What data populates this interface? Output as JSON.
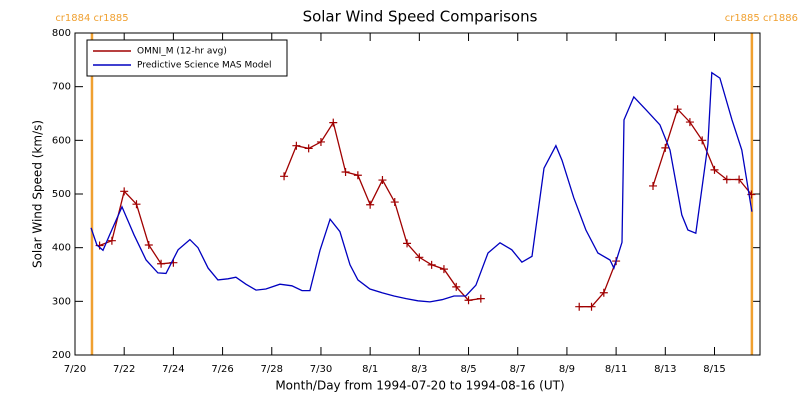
{
  "chart_data": {
    "type": "line",
    "title": "Solar Wind Speed Comparisons",
    "x_label": "Month/Day from 1994-07-20 to 1994-08-16 (UT)",
    "y_label": "Solar Wind Speed (km/s)",
    "xlim": [
      0,
      27.85
    ],
    "ylim": [
      200,
      800
    ],
    "xticks": [
      {
        "value": 0,
        "label": "7/20"
      },
      {
        "value": 2,
        "label": "7/22"
      },
      {
        "value": 4,
        "label": "7/24"
      },
      {
        "value": 6,
        "label": "7/26"
      },
      {
        "value": 8,
        "label": "7/28"
      },
      {
        "value": 10,
        "label": "7/30"
      },
      {
        "value": 12,
        "label": "8/1"
      },
      {
        "value": 14,
        "label": "8/3"
      },
      {
        "value": 16,
        "label": "8/5"
      },
      {
        "value": 18,
        "label": "8/7"
      },
      {
        "value": 20,
        "label": "8/9"
      },
      {
        "value": 22,
        "label": "8/11"
      },
      {
        "value": 24,
        "label": "8/13"
      },
      {
        "value": 26,
        "label": "8/15"
      }
    ],
    "yticks": [
      200,
      300,
      400,
      500,
      600,
      700,
      800
    ],
    "markers": [
      {
        "x": 0.69,
        "label": "cr1884 cr1885",
        "color": "#f0a030"
      },
      {
        "x": 27.52,
        "label": "cr1885 cr1886",
        "color": "#f0a030"
      }
    ],
    "legend": "upper left",
    "series": [
      {
        "name": "OMNI_M (12-hr avg)",
        "color": "#a00000",
        "marker": "+",
        "x": [
          1,
          1.5,
          2,
          2.5,
          3,
          3.5,
          4,
          4.5,
          5,
          5.5,
          6,
          6.5,
          7,
          7.5,
          8,
          8.5,
          9,
          9.5,
          10,
          10.5,
          11,
          11.5,
          12,
          12.5,
          13,
          13.5,
          14,
          14.5,
          15,
          15.5,
          16,
          16.5,
          17,
          17.5,
          18,
          18.5,
          19,
          19.5,
          20,
          20.5,
          21,
          21.5,
          22,
          22.5,
          23,
          23.5,
          24,
          24.5,
          25,
          25.5,
          26,
          26.5,
          27,
          27.5
        ],
        "values": [
          404,
          413,
          505,
          481,
          405,
          370,
          372,
          null,
          null,
          null,
          null,
          null,
          null,
          null,
          null,
          533,
          590,
          585,
          597,
          633,
          541,
          535,
          480,
          526,
          485,
          408,
          382,
          368,
          360,
          327,
          302,
          305,
          null,
          null,
          null,
          null,
          null,
          null,
          null,
          290,
          290,
          316,
          375,
          null,
          null,
          515,
          586,
          658,
          634,
          600,
          545,
          527,
          527,
          499
        ]
      },
      {
        "name": "Predictive Science MAS Model",
        "color": "#0000c0",
        "x": [
          0.65,
          0.89,
          1.14,
          1.42,
          1.91,
          2.4,
          2.89,
          3.37,
          3.7,
          4.19,
          4.67,
          5,
          5.41,
          5.81,
          6.22,
          6.54,
          6.95,
          7.36,
          7.76,
          8.33,
          8.82,
          9.23,
          9.55,
          9.96,
          10.37,
          10.77,
          11.18,
          11.5,
          11.99,
          12.48,
          12.97,
          13.46,
          13.94,
          14.43,
          14.92,
          15.41,
          15.89,
          16.3,
          16.79,
          17.28,
          17.76,
          18.17,
          18.58,
          19.07,
          19.55,
          19.8,
          20.28,
          20.77,
          21.26,
          21.75,
          21.91,
          22.24,
          22.32,
          22.72,
          23.21,
          23.78,
          24.19,
          24.67,
          24.92,
          25.24,
          25.73,
          25.89,
          26.22,
          26.71,
          27.11,
          27.52
        ],
        "values": [
          437,
          405,
          395,
          425,
          476,
          424,
          377,
          353,
          352,
          396,
          415,
          400,
          362,
          340,
          342,
          345,
          332,
          321,
          323,
          332,
          329,
          320,
          320,
          395,
          453,
          430,
          368,
          340,
          323,
          316,
          310,
          305,
          301,
          299,
          303,
          310,
          310,
          330,
          390,
          409,
          396,
          373,
          384,
          548,
          590,
          563,
          493,
          433,
          390,
          377,
          362,
          410,
          638,
          681,
          657,
          629,
          582,
          461,
          433,
          427,
          592,
          726,
          716,
          638,
          582,
          467
        ]
      }
    ]
  }
}
